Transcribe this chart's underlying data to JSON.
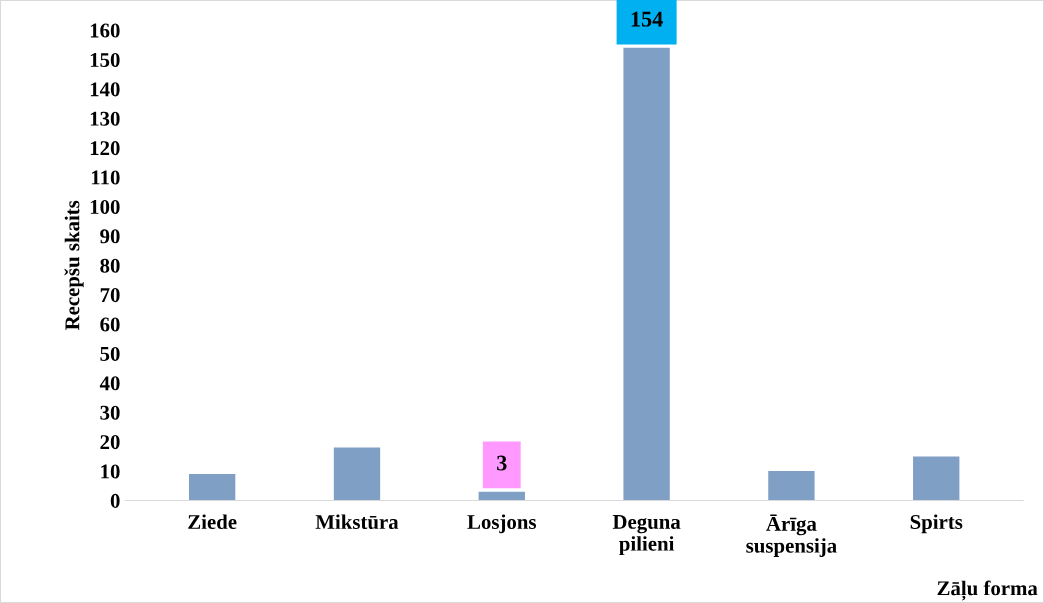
{
  "chart_data": {
    "type": "bar",
    "categories": [
      "Ziede",
      "Mikstūra",
      "Losjons",
      "Deguna\npilieni",
      "Ārīga\nsuspensija",
      "Spirts"
    ],
    "values": [
      9,
      18,
      3,
      154,
      10,
      15
    ],
    "value_labels": [
      null,
      null,
      "3",
      "154",
      null,
      null
    ],
    "color": "#809fc4",
    "xlabel": "Zāļu forma",
    "ylabel": "Recepšu skaits",
    "ylim": [
      0,
      160
    ],
    "yticks": [
      0,
      10,
      20,
      30,
      40,
      50,
      60,
      70,
      80,
      90,
      100,
      110,
      120,
      130,
      140,
      150,
      160
    ],
    "grid": false,
    "legend": false
  }
}
